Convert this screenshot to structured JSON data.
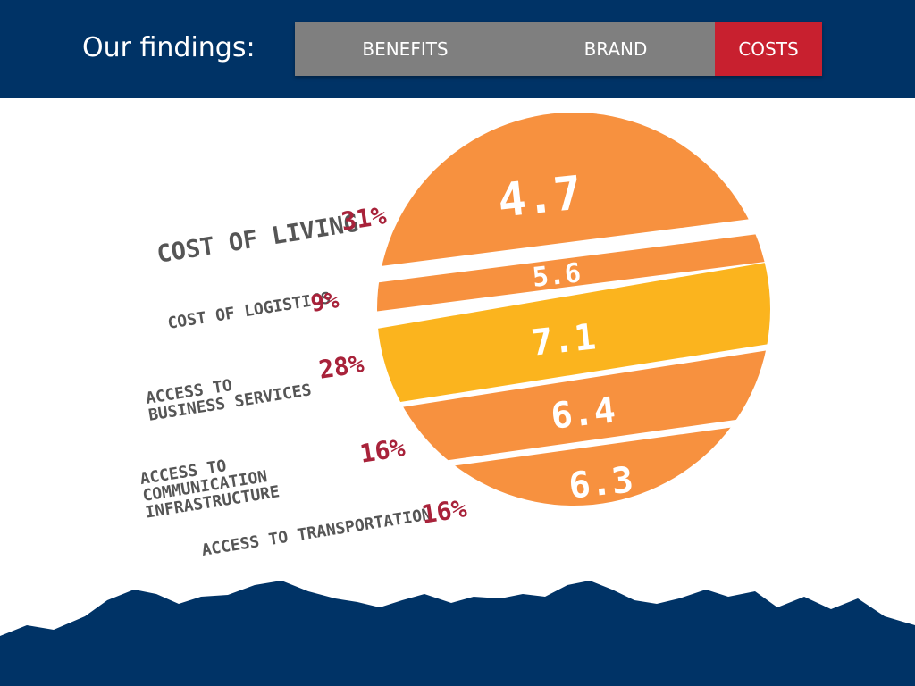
{
  "header": {
    "title": "Our findings:",
    "tabs": [
      {
        "label": "BENEFITS",
        "active": false
      },
      {
        "label": "BRAND",
        "active": false
      },
      {
        "label": "COSTS",
        "active": true
      }
    ]
  },
  "colors": {
    "header_bg": "#003366",
    "tab_inactive": "#7f7f7f",
    "tab_active": "#c8202f",
    "orange": "#f7913f",
    "yellow": "#fbb41e",
    "label_text": "#555555",
    "percent_text": "#a8223a",
    "mountains": "#003366"
  },
  "chart_data": {
    "type": "table",
    "categories": [
      "COST OF LIVING",
      "COST OF LOGISTICS",
      "ACCESS TO BUSINESS SERVICES",
      "ACCESS TO COMMUNICATION INFRASTRUCTURE",
      "ACCESS TO TRANSPORTATION"
    ],
    "percentages": [
      "31%",
      "9%",
      "28%",
      "16%",
      "16%"
    ],
    "scores": [
      "4.7",
      "5.6",
      "7.1",
      "6.4",
      "6.3"
    ],
    "highlighted_score": "7.1"
  }
}
